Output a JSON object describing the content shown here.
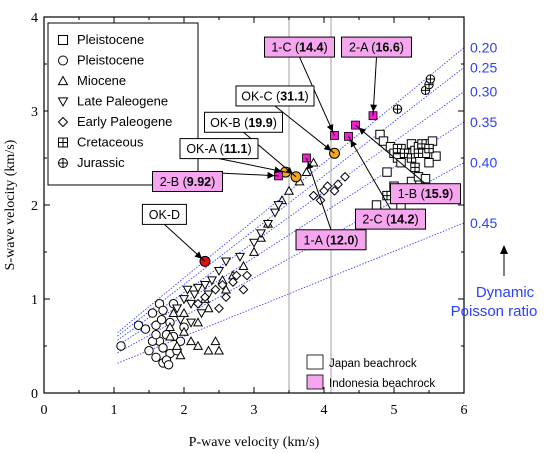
{
  "chart_data": {
    "type": "scatter",
    "xlabel": "P-wave velocity (km/s)",
    "ylabel": "S-wave velocity (km/s)",
    "xlim": [
      0,
      6
    ],
    "ylim": [
      0,
      4
    ],
    "xticks": [
      "0",
      "1",
      "2",
      "3",
      "4",
      "5",
      "6"
    ],
    "yticks": [
      "0",
      "1",
      "2",
      "3",
      "4"
    ],
    "grid": false,
    "legend_position": "top-left",
    "legend": [
      {
        "label": "Pleistocene",
        "marker": "square"
      },
      {
        "label": "Pleistocene",
        "marker": "circle"
      },
      {
        "label": "Miocene",
        "marker": "triangle-up"
      },
      {
        "label": "Late Paleogene",
        "marker": "triangle-down"
      },
      {
        "label": "Early Paleogene",
        "marker": "diamond"
      },
      {
        "label": "Cretaceous",
        "marker": "square-plus"
      },
      {
        "label": "Jurassic",
        "marker": "circle-plus"
      }
    ],
    "sample_legend": [
      {
        "label": "Japan beachrock",
        "color": "#ffffff"
      },
      {
        "label": "Indonesia beachrock",
        "color": "#f6a6ee"
      }
    ],
    "poisson_lines": [
      {
        "label": "0.20",
        "nu": 0.2
      },
      {
        "label": "0.25",
        "nu": 0.25
      },
      {
        "label": "0.30",
        "nu": 0.3
      },
      {
        "label": "0.35",
        "nu": 0.35
      },
      {
        "label": "0.40",
        "nu": 0.4
      },
      {
        "label": "0.45",
        "nu": 0.45
      }
    ],
    "poisson_title_line1": "Dynamic",
    "poisson_title_line2": "Poisson ratio",
    "vertical_lines_x": [
      3.5,
      4.1
    ],
    "series": [
      {
        "marker": "square",
        "points": [
          [
            4.8,
            2.75
          ],
          [
            4.85,
            2.68
          ],
          [
            4.95,
            2.62
          ],
          [
            5.0,
            2.55
          ],
          [
            5.05,
            2.5
          ],
          [
            5.1,
            2.6
          ],
          [
            5.2,
            2.55
          ],
          [
            5.25,
            2.65
          ],
          [
            5.3,
            2.58
          ],
          [
            5.35,
            2.62
          ],
          [
            5.4,
            2.6
          ],
          [
            5.45,
            2.55
          ],
          [
            5.5,
            2.65
          ],
          [
            5.55,
            2.68
          ],
          [
            5.6,
            2.52
          ],
          [
            5.5,
            2.45
          ],
          [
            5.1,
            2.45
          ],
          [
            4.9,
            2.35
          ],
          [
            5.0,
            2.2
          ],
          [
            5.15,
            2.15
          ],
          [
            5.25,
            2.25
          ],
          [
            5.35,
            2.3
          ],
          [
            5.45,
            2.28
          ],
          [
            4.75,
            2.0
          ],
          [
            5.1,
            1.98
          ]
        ]
      },
      {
        "marker": "circle",
        "points": [
          [
            1.1,
            0.5
          ],
          [
            1.35,
            0.72
          ],
          [
            1.45,
            0.68
          ],
          [
            1.55,
            0.85
          ],
          [
            1.6,
            0.72
          ],
          [
            1.65,
            0.55
          ],
          [
            1.7,
            0.48
          ],
          [
            1.75,
            0.62
          ],
          [
            1.6,
            0.38
          ],
          [
            1.7,
            0.32
          ],
          [
            1.8,
            0.42
          ],
          [
            1.75,
            0.35
          ],
          [
            1.65,
            0.95
          ],
          [
            1.85,
            0.6
          ],
          [
            1.55,
            0.55
          ],
          [
            1.5,
            0.45
          ],
          [
            1.8,
            0.75
          ],
          [
            1.7,
            0.88
          ],
          [
            1.85,
            0.95
          ],
          [
            1.6,
            0.62
          ],
          [
            1.95,
            0.55
          ],
          [
            2.0,
            0.7
          ],
          [
            1.9,
            0.45
          ],
          [
            1.68,
            0.78
          ],
          [
            1.78,
            0.3
          ]
        ]
      },
      {
        "marker": "triangle-up",
        "points": [
          [
            1.8,
            0.6
          ],
          [
            1.9,
            0.5
          ],
          [
            2.0,
            0.65
          ],
          [
            2.1,
            0.55
          ],
          [
            2.2,
            0.5
          ],
          [
            2.35,
            0.45
          ],
          [
            2.45,
            0.55
          ],
          [
            2.2,
            0.75
          ],
          [
            2.35,
            0.9
          ],
          [
            2.6,
            1.1
          ],
          [
            2.7,
            1.25
          ],
          [
            2.85,
            1.35
          ],
          [
            3.0,
            1.5
          ],
          [
            3.1,
            1.65
          ],
          [
            3.2,
            1.8
          ],
          [
            3.4,
            2.05
          ],
          [
            3.5,
            2.15
          ],
          [
            3.65,
            2.25
          ],
          [
            3.75,
            2.35
          ],
          [
            3.85,
            2.45
          ],
          [
            2.3,
            1.0
          ],
          [
            2.55,
            1.2
          ],
          [
            1.85,
            0.85
          ],
          [
            1.95,
            0.4
          ],
          [
            2.5,
            0.45
          ],
          [
            1.8,
            0.7
          ],
          [
            2.0,
            0.85
          ]
        ]
      },
      {
        "marker": "triangle-down",
        "points": [
          [
            1.9,
            0.9
          ],
          [
            2.0,
            1.0
          ],
          [
            2.05,
            1.1
          ],
          [
            2.1,
            0.95
          ],
          [
            2.15,
            1.05
          ],
          [
            2.2,
            1.12
          ],
          [
            2.3,
            1.15
          ],
          [
            2.4,
            1.2
          ],
          [
            2.5,
            1.3
          ],
          [
            2.6,
            1.4
          ],
          [
            2.8,
            1.45
          ],
          [
            3.0,
            1.6
          ],
          [
            3.2,
            1.8
          ],
          [
            3.35,
            2.0
          ],
          [
            3.3,
            1.92
          ],
          [
            3.1,
            1.7
          ],
          [
            2.25,
            0.85
          ],
          [
            2.1,
            0.75
          ],
          [
            1.95,
            0.78
          ],
          [
            2.35,
            1.05
          ]
        ]
      },
      {
        "marker": "diamond",
        "points": [
          [
            2.3,
            1.02
          ],
          [
            2.45,
            1.1
          ],
          [
            2.55,
            1.15
          ],
          [
            2.6,
            1.02
          ],
          [
            2.7,
            1.18
          ],
          [
            2.85,
            1.1
          ],
          [
            2.75,
            1.25
          ],
          [
            2.2,
            0.95
          ],
          [
            3.85,
            2.1
          ],
          [
            3.95,
            2.05
          ],
          [
            4.05,
            2.2
          ],
          [
            4.15,
            2.15
          ],
          [
            4.3,
            2.3
          ],
          [
            4.0,
            2.15
          ],
          [
            4.2,
            2.22
          ],
          [
            2.5,
            0.9
          ],
          [
            2.9,
            1.25
          ]
        ]
      },
      {
        "marker": "square-plus",
        "points": [
          [
            4.9,
            2.1
          ],
          [
            5.05,
            2.6
          ],
          [
            5.15,
            2.55
          ],
          [
            5.25,
            2.5
          ],
          [
            5.3,
            2.4
          ],
          [
            5.4,
            2.65
          ],
          [
            5.35,
            2.55
          ],
          [
            5.5,
            2.6
          ]
        ]
      },
      {
        "marker": "circle-plus",
        "points": [
          [
            5.05,
            3.02
          ],
          [
            5.45,
            3.22
          ],
          [
            5.5,
            3.28
          ],
          [
            5.52,
            3.34
          ]
        ]
      }
    ],
    "highlight_points": [
      {
        "label": "OK-D",
        "x": 2.3,
        "y": 1.4,
        "color": "#e01010",
        "shape": "circle"
      },
      {
        "label": "OK-A",
        "x": 3.45,
        "y": 2.35,
        "color": "#f4a81c",
        "shape": "circle"
      },
      {
        "label": "OK-B",
        "x": 3.6,
        "y": 2.3,
        "color": "#f4a81c",
        "shape": "circle"
      },
      {
        "label": "OK-C",
        "x": 4.15,
        "y": 2.55,
        "color": "#f4a81c",
        "shape": "circle"
      },
      {
        "label": "2-B",
        "x": 3.35,
        "y": 2.31,
        "color": "#ee22cc",
        "shape": "square"
      },
      {
        "label": "1-A",
        "x": 3.75,
        "y": 2.5,
        "color": "#ee22cc",
        "shape": "square"
      },
      {
        "label": "1-C",
        "x": 4.15,
        "y": 2.74,
        "color": "#ee22cc",
        "shape": "square"
      },
      {
        "label": "2-C",
        "x": 4.35,
        "y": 2.73,
        "color": "#ee22cc",
        "shape": "square"
      },
      {
        "label": "1-B",
        "x": 4.45,
        "y": 2.85,
        "color": "#ee22cc",
        "shape": "square"
      },
      {
        "label": "2-A",
        "x": 4.7,
        "y": 2.95,
        "color": "#ee22cc",
        "shape": "square"
      }
    ],
    "annotations": [
      {
        "name": "1-C",
        "value": "14.4",
        "fill": "#f6a6ee",
        "tx": 3.65,
        "ty": 3.68,
        "ax": 4.15,
        "ay": 2.74
      },
      {
        "name": "2-A",
        "value": "16.6",
        "fill": "#f6a6ee",
        "tx": 4.75,
        "ty": 3.68,
        "ax": 4.7,
        "ay": 2.95
      },
      {
        "name": "OK-C",
        "value": "31.1",
        "fill": "#ffffff",
        "tx": 3.3,
        "ty": 3.16,
        "ax": 4.15,
        "ay": 2.55
      },
      {
        "name": "OK-B",
        "value": "19.9",
        "fill": "#ffffff",
        "tx": 2.85,
        "ty": 2.88,
        "ax": 3.6,
        "ay": 2.3
      },
      {
        "name": "OK-A",
        "value": "11.1",
        "fill": "#ffffff",
        "tx": 2.5,
        "ty": 2.6,
        "ax": 3.45,
        "ay": 2.35
      },
      {
        "name": "2-B",
        "value": "9.92",
        "fill": "#f6a6ee",
        "tx": 2.05,
        "ty": 2.25,
        "ax": 3.35,
        "ay": 2.31
      },
      {
        "name": "OK-D",
        "value": "",
        "fill": "#ffffff",
        "tx": 1.72,
        "ty": 1.9,
        "ax": 2.3,
        "ay": 1.4
      },
      {
        "name": "1-A",
        "value": "12.0",
        "fill": "#f6a6ee",
        "tx": 4.1,
        "ty": 1.63,
        "ax": 3.75,
        "ay": 2.5
      },
      {
        "name": "2-C",
        "value": "14.2",
        "fill": "#f6a6ee",
        "tx": 4.95,
        "ty": 1.85,
        "ax": 4.35,
        "ay": 2.73
      },
      {
        "name": "1-B",
        "value": "15.9",
        "fill": "#f6a6ee",
        "tx": 5.45,
        "ty": 2.12,
        "ax": 4.45,
        "ay": 2.85
      }
    ]
  }
}
